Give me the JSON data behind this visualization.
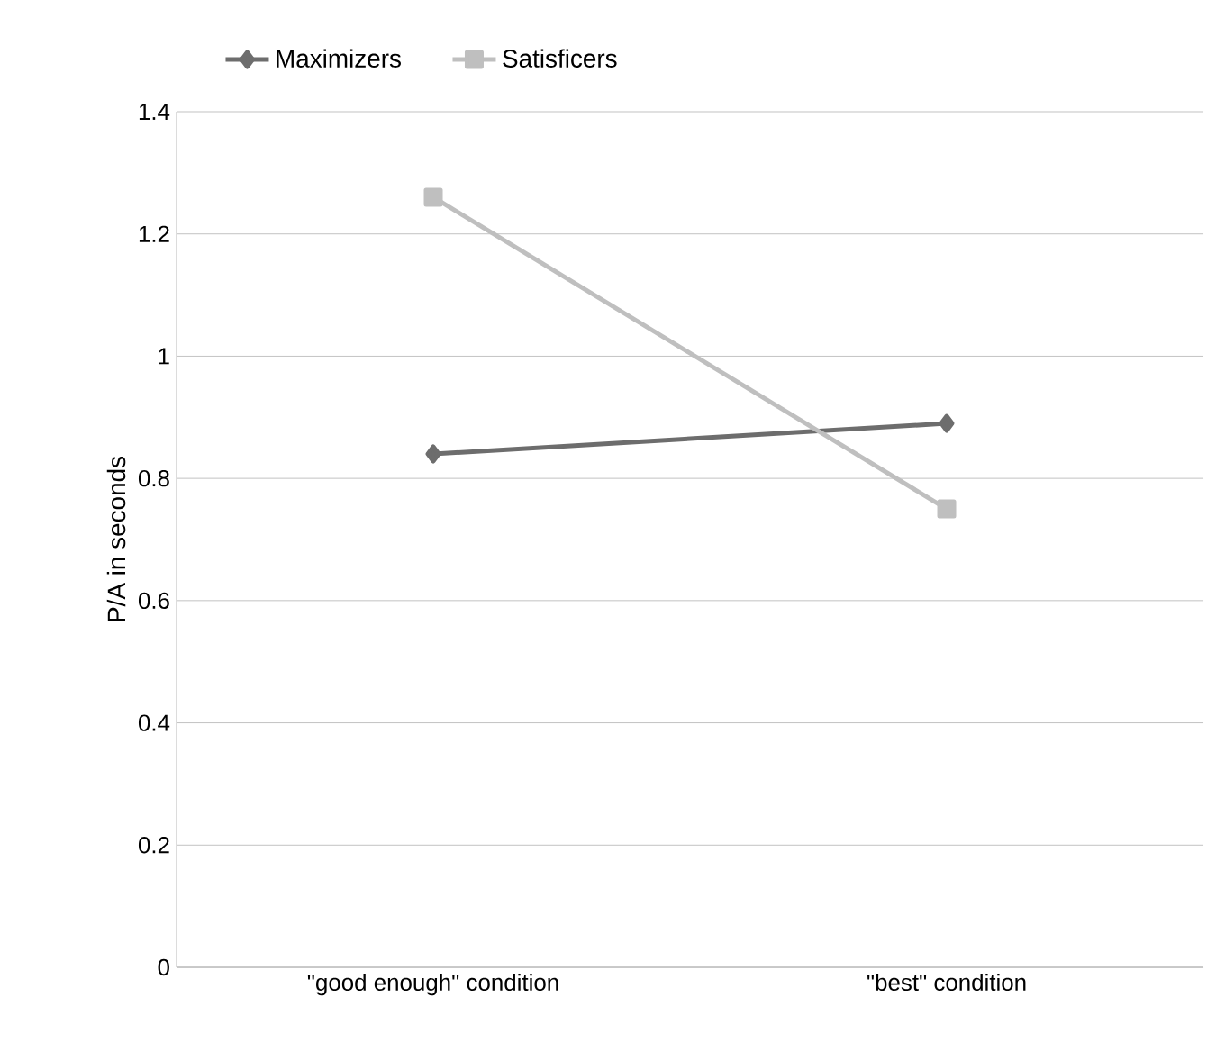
{
  "chart_data": {
    "type": "line",
    "ylabel": "P/A in seconds",
    "categories": [
      "\"good enough\" condition",
      "\"best\" condition"
    ],
    "series": [
      {
        "name": "Maximizers",
        "color": "#6d6d6d",
        "values": [
          0.84,
          0.89
        ],
        "marker": "diamond"
      },
      {
        "name": "Satisficers",
        "color": "#bfbfbf",
        "values": [
          1.26,
          0.75
        ],
        "marker": "square"
      }
    ],
    "ylim": [
      0,
      1.4
    ],
    "yticks": [
      0,
      0.2,
      0.4,
      0.6,
      0.8,
      1,
      1.2,
      1.4
    ],
    "grid": "y",
    "legend": "top left"
  }
}
